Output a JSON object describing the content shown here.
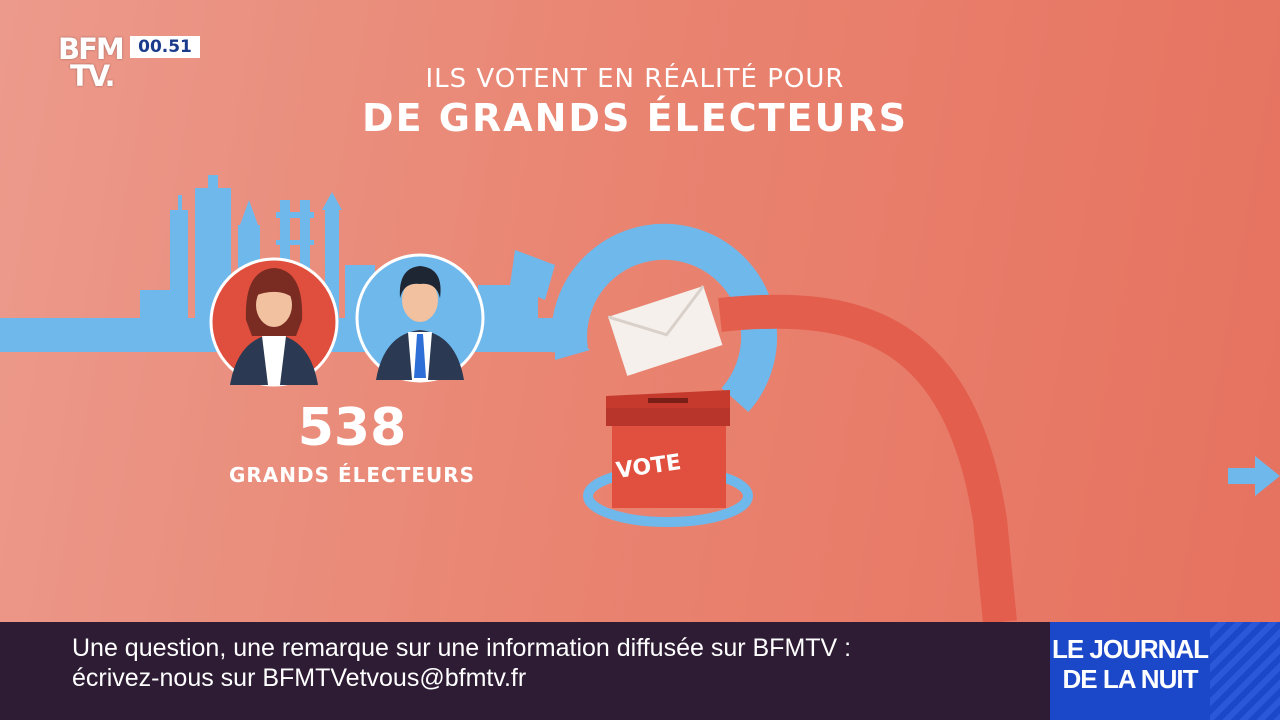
{
  "channel": {
    "logo_line1": "BFM",
    "logo_line2": "TV.",
    "clock": "00.51"
  },
  "headline": {
    "line1": "ILS VOTENT EN RÉALITÉ POUR",
    "line2": "DE GRANDS ÉLECTEURS"
  },
  "stat": {
    "value": "538",
    "label": "GRANDS ÉLECTEURS"
  },
  "ballot_box": {
    "label": "VOTE"
  },
  "ticker": {
    "line1": "Une question, une remarque sur une information diffusée sur BFMTV :",
    "line2": "écrivez-nous sur BFMTVetvous@bfmtv.fr"
  },
  "program": {
    "line1": "LE JOURNAL",
    "line2": "DE LA NUIT"
  },
  "colors": {
    "background": "#e98572",
    "skyline": "#6fb8ec",
    "ticker": "#2e1c34",
    "program": "#1b47c9"
  }
}
